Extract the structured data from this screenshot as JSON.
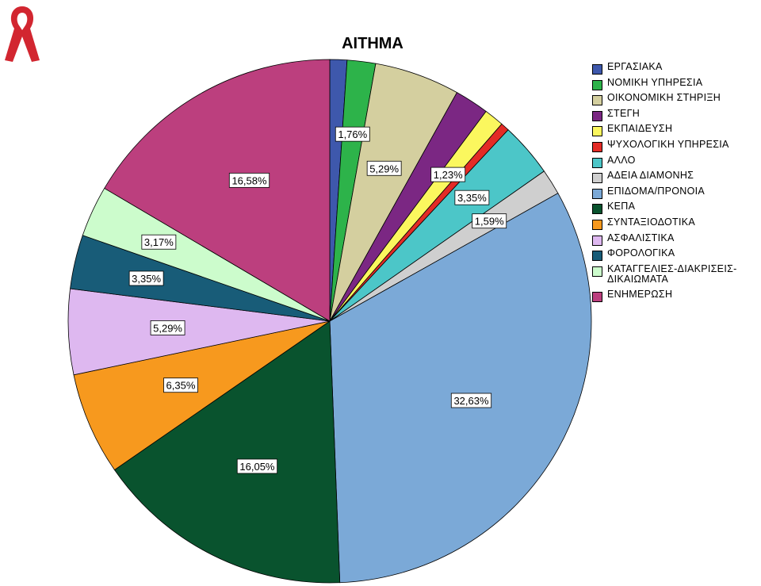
{
  "logo": {
    "name": "red-ribbon-logo",
    "color": "#d22630"
  },
  "chart_data": {
    "type": "pie",
    "title": "ΑΙΤΗΜΑ",
    "legend_position": "right",
    "start": "top",
    "direction": "clockwise",
    "slices": [
      {
        "label": "ΕΡΓΑΣΙΑΚΑ",
        "value": 1.06,
        "color": "#3e58ac",
        "data_label": ""
      },
      {
        "label": "ΝΟΜΙΚΗ ΥΠΗΡΕΣΙΑ",
        "value": 1.76,
        "color": "#2db34a",
        "data_label": "1,76%"
      },
      {
        "label": "ΟΙΚΟΝΟΜΙΚΗ ΣΤΗΡΙΞΗ",
        "value": 5.29,
        "color": "#d4cf9f",
        "data_label": "5,29%"
      },
      {
        "label": "ΣΤΕΓΗ",
        "value": 2.12,
        "color": "#7b2783",
        "data_label": ""
      },
      {
        "label": "ΕΚΠΑΙΔΕΥΣΗ",
        "value": 1.23,
        "color": "#fbf75e",
        "data_label": "1,23%"
      },
      {
        "label": "ΨΥΧΟΛΟΓΙΚΗ ΥΠΗΡΕΣΙΑ",
        "value": 0.53,
        "color": "#e32b26",
        "data_label": ""
      },
      {
        "label": "ΑΛΛΟ",
        "value": 3.35,
        "color": "#4cc6c8",
        "data_label": "3,35%"
      },
      {
        "label": "ΑΔΕΙΑ ΔΙΑΜΟΝΗΣ",
        "value": 1.59,
        "color": "#cfcfcf",
        "data_label": "1,59%"
      },
      {
        "label": "ΕΠΙΔΟΜΑ/ΠΡΟΝΟΙΑ",
        "value": 32.63,
        "color": "#7ba9d7",
        "data_label": "32,63%"
      },
      {
        "label": "ΚΕΠΑ",
        "value": 16.05,
        "color": "#09532e",
        "data_label": "16,05%"
      },
      {
        "label": "ΣΥΝΤΑΞΙΟΔΟΤΙΚΑ",
        "value": 6.35,
        "color": "#f7991e",
        "data_label": "6,35%"
      },
      {
        "label": "ΑΣΦΑΛΙΣΤΙΚΑ",
        "value": 5.29,
        "color": "#deb8f0",
        "data_label": "5,29%"
      },
      {
        "label": "ΦΟΡΟΛΟΓΙΚΑ",
        "value": 3.35,
        "color": "#185c78",
        "data_label": "3,35%"
      },
      {
        "label": "ΚΑΤΑΓΓΕΛΙΕΣ-ΔΙΑΚΡΙΣΕΙΣ-ΔΙΚΑΙΩΜΑΤΑ",
        "value": 3.17,
        "color": "#ccfccc",
        "data_label": "3,17%"
      },
      {
        "label": "ΕΝΗΜΕΡΩΣΗ",
        "value": 16.58,
        "color": "#bc3f7e",
        "data_label": "16,58%"
      }
    ]
  }
}
